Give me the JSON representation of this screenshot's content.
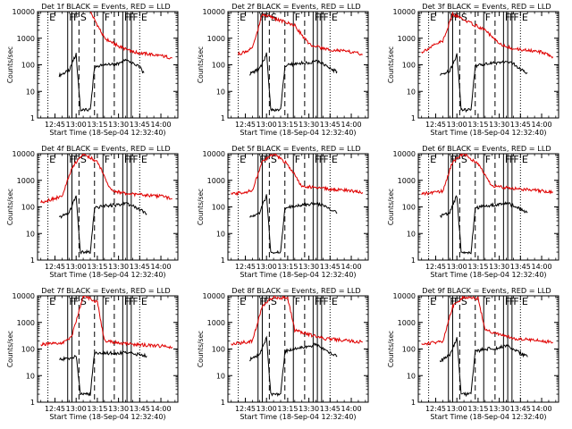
{
  "colors": {
    "events": "#000000",
    "lld": "#e00000",
    "axes": "#000000",
    "background": "#ffffff"
  },
  "shared": {
    "y_scale": "log",
    "ylim": [
      1,
      10000
    ],
    "y_ticks": [
      1,
      10,
      100,
      1000,
      10000
    ],
    "y_tick_labels": [
      "1",
      "10",
      "100",
      "1000",
      "10000"
    ],
    "ylabel": "Counts/sec",
    "x_ticks": [
      "12:45",
      "13:00",
      "13:15",
      "13:30",
      "13:45",
      "14:00"
    ],
    "xlabel": "Start Time (18-Sep-04 12:32:40)",
    "xlim": [
      "12:32:40",
      "14:12:00"
    ],
    "legend": "BLACK = Events, RED = LLD",
    "markers": [
      {
        "label": "E",
        "time": "12:40",
        "style": "dotted"
      },
      {
        "label": "F",
        "time": "12:54",
        "style": "solid"
      },
      {
        "label": "F",
        "time": "12:57",
        "style": "solid"
      },
      {
        "label": "S",
        "time": "13:02",
        "style": "dashed"
      },
      {
        "label": "",
        "time": "13:13",
        "style": "dashed"
      },
      {
        "label": "F",
        "time": "13:19",
        "style": "solid"
      },
      {
        "label": "",
        "time": "13:27",
        "style": "dashed"
      },
      {
        "label": "F",
        "time": "13:33",
        "style": "solid"
      },
      {
        "label": "F",
        "time": "13:36",
        "style": "solid"
      },
      {
        "label": "F",
        "time": "13:39",
        "style": "solid"
      },
      {
        "label": "E",
        "time": "13:45",
        "style": "dotted"
      }
    ]
  },
  "chart_data": [
    {
      "type": "line",
      "title": "Det 1f BLACK = Events, RED = LLD",
      "detector": "1f",
      "series": [
        {
          "name": "Events",
          "color": "#000000",
          "points": [
            [
              "12:48",
              40
            ],
            [
              "12:55",
              60
            ],
            [
              "12:58",
              150
            ],
            [
              "13:00",
              250
            ],
            [
              "13:03",
              2
            ],
            [
              "13:10",
              2
            ],
            [
              "13:13",
              80
            ],
            [
              "13:20",
              100
            ],
            [
              "13:30",
              110
            ],
            [
              "13:35",
              150
            ],
            [
              "13:40",
              120
            ],
            [
              "13:45",
              80
            ],
            [
              "13:48",
              50
            ]
          ]
        },
        {
          "name": "LLD",
          "color": "#e00000",
          "points": [
            [
              "13:10",
              10000
            ],
            [
              "13:20",
              1000
            ],
            [
              "13:30",
              500
            ],
            [
              "13:40",
              300
            ],
            [
              "14:00",
              220
            ],
            [
              "14:08",
              180
            ]
          ]
        }
      ]
    },
    {
      "type": "line",
      "title": "Det 2f BLACK = Events, RED = LLD",
      "detector": "2f",
      "series": [
        {
          "name": "Events",
          "color": "#000000",
          "points": [
            [
              "12:48",
              45
            ],
            [
              "12:55",
              70
            ],
            [
              "12:58",
              140
            ],
            [
              "13:00",
              280
            ],
            [
              "13:03",
              2
            ],
            [
              "13:10",
              2
            ],
            [
              "13:13",
              90
            ],
            [
              "13:20",
              110
            ],
            [
              "13:30",
              120
            ],
            [
              "13:35",
              140
            ],
            [
              "13:40",
              110
            ],
            [
              "13:45",
              70
            ],
            [
              "13:50",
              55
            ]
          ]
        },
        {
          "name": "LLD",
          "color": "#e00000",
          "points": [
            [
              "12:40",
              250
            ],
            [
              "12:50",
              400
            ],
            [
              "12:57",
              8000
            ],
            [
              "13:20",
              3000
            ],
            [
              "13:30",
              600
            ],
            [
              "13:40",
              400
            ],
            [
              "14:00",
              300
            ],
            [
              "14:08",
              250
            ]
          ]
        }
      ]
    },
    {
      "type": "line",
      "title": "Det 3f BLACK = Events, RED = LLD",
      "detector": "3f",
      "series": [
        {
          "name": "Events",
          "color": "#000000",
          "points": [
            [
              "12:48",
              40
            ],
            [
              "12:55",
              60
            ],
            [
              "12:58",
              130
            ],
            [
              "13:00",
              260
            ],
            [
              "13:03",
              2
            ],
            [
              "13:10",
              2
            ],
            [
              "13:13",
              90
            ],
            [
              "13:20",
              110
            ],
            [
              "13:30",
              120
            ],
            [
              "13:35",
              140
            ],
            [
              "13:40",
              110
            ],
            [
              "13:45",
              70
            ],
            [
              "13:50",
              50
            ]
          ]
        },
        {
          "name": "LLD",
          "color": "#e00000",
          "points": [
            [
              "12:35",
              300
            ],
            [
              "12:50",
              800
            ],
            [
              "12:57",
              8000
            ],
            [
              "13:20",
              2000
            ],
            [
              "13:30",
              600
            ],
            [
              "13:40",
              400
            ],
            [
              "14:00",
              300
            ],
            [
              "14:08",
              200
            ]
          ]
        }
      ]
    },
    {
      "type": "line",
      "title": "Det 4f BLACK = Events, RED = LLD",
      "detector": "4f",
      "series": [
        {
          "name": "Events",
          "color": "#000000",
          "points": [
            [
              "12:48",
              40
            ],
            [
              "12:55",
              60
            ],
            [
              "12:58",
              140
            ],
            [
              "13:00",
              250
            ],
            [
              "13:03",
              2
            ],
            [
              "13:10",
              2
            ],
            [
              "13:13",
              90
            ],
            [
              "13:20",
              110
            ],
            [
              "13:30",
              120
            ],
            [
              "13:35",
              140
            ],
            [
              "13:40",
              110
            ],
            [
              "13:45",
              80
            ],
            [
              "13:50",
              55
            ]
          ]
        },
        {
          "name": "LLD",
          "color": "#e00000",
          "points": [
            [
              "12:35",
              150
            ],
            [
              "12:50",
              250
            ],
            [
              "12:57",
              3000
            ],
            [
              "13:05",
              10000
            ],
            [
              "13:15",
              5000
            ],
            [
              "13:25",
              400
            ],
            [
              "13:40",
              300
            ],
            [
              "14:00",
              250
            ],
            [
              "14:08",
              200
            ]
          ]
        }
      ]
    },
    {
      "type": "line",
      "title": "Det 5f BLACK = Events, RED = LLD",
      "detector": "5f",
      "series": [
        {
          "name": "Events",
          "color": "#000000",
          "points": [
            [
              "12:48",
              40
            ],
            [
              "12:55",
              60
            ],
            [
              "12:58",
              150
            ],
            [
              "13:00",
              260
            ],
            [
              "13:03",
              2
            ],
            [
              "13:10",
              2
            ],
            [
              "13:13",
              90
            ],
            [
              "13:20",
              110
            ],
            [
              "13:30",
              120
            ],
            [
              "13:35",
              140
            ],
            [
              "13:40",
              110
            ],
            [
              "13:45",
              80
            ],
            [
              "13:50",
              60
            ]
          ]
        },
        {
          "name": "LLD",
          "color": "#e00000",
          "points": [
            [
              "12:35",
              300
            ],
            [
              "12:50",
              400
            ],
            [
              "12:57",
              5000
            ],
            [
              "13:05",
              10000
            ],
            [
              "13:15",
              4000
            ],
            [
              "13:25",
              600
            ],
            [
              "13:40",
              500
            ],
            [
              "14:00",
              400
            ],
            [
              "14:08",
              350
            ]
          ]
        }
      ]
    },
    {
      "type": "line",
      "title": "Det 6f BLACK = Events, RED = LLD",
      "detector": "6f",
      "series": [
        {
          "name": "Events",
          "color": "#000000",
          "points": [
            [
              "12:48",
              45
            ],
            [
              "12:55",
              60
            ],
            [
              "12:58",
              150
            ],
            [
              "13:00",
              260
            ],
            [
              "13:03",
              2
            ],
            [
              "13:10",
              2
            ],
            [
              "13:13",
              90
            ],
            [
              "13:20",
              110
            ],
            [
              "13:30",
              120
            ],
            [
              "13:35",
              140
            ],
            [
              "13:40",
              110
            ],
            [
              "13:45",
              80
            ],
            [
              "13:50",
              60
            ]
          ]
        },
        {
          "name": "LLD",
          "color": "#e00000",
          "points": [
            [
              "12:35",
              300
            ],
            [
              "12:50",
              400
            ],
            [
              "12:57",
              5000
            ],
            [
              "13:05",
              10000
            ],
            [
              "13:15",
              4000
            ],
            [
              "13:25",
              600
            ],
            [
              "13:40",
              500
            ],
            [
              "14:00",
              400
            ],
            [
              "14:08",
              350
            ]
          ]
        }
      ]
    },
    {
      "type": "line",
      "title": "Det 7f BLACK = Events, RED = LLD",
      "detector": "7f",
      "series": [
        {
          "name": "Events",
          "color": "#000000",
          "points": [
            [
              "12:48",
              40
            ],
            [
              "12:55",
              45
            ],
            [
              "12:58",
              50
            ],
            [
              "13:00",
              60
            ],
            [
              "13:03",
              2
            ],
            [
              "13:10",
              2
            ],
            [
              "13:13",
              70
            ],
            [
              "13:20",
              70
            ],
            [
              "13:30",
              70
            ],
            [
              "13:35",
              75
            ],
            [
              "13:40",
              70
            ],
            [
              "13:45",
              60
            ],
            [
              "13:50",
              55
            ]
          ]
        },
        {
          "name": "LLD",
          "color": "#e00000",
          "points": [
            [
              "12:35",
              150
            ],
            [
              "12:50",
              160
            ],
            [
              "12:57",
              300
            ],
            [
              "13:05",
              10000
            ],
            [
              "13:15",
              6000
            ],
            [
              "13:20",
              200
            ],
            [
              "13:40",
              150
            ],
            [
              "14:00",
              130
            ],
            [
              "14:08",
              120
            ]
          ]
        }
      ]
    },
    {
      "type": "line",
      "title": "Det 8f BLACK = Events, RED = LLD",
      "detector": "8f",
      "series": [
        {
          "name": "Events",
          "color": "#000000",
          "points": [
            [
              "12:48",
              40
            ],
            [
              "12:55",
              60
            ],
            [
              "12:58",
              150
            ],
            [
              "13:00",
              260
            ],
            [
              "13:03",
              2
            ],
            [
              "13:10",
              2
            ],
            [
              "13:13",
              80
            ],
            [
              "13:20",
              100
            ],
            [
              "13:30",
              120
            ],
            [
              "13:35",
              150
            ],
            [
              "13:40",
              100
            ],
            [
              "13:45",
              70
            ],
            [
              "13:50",
              55
            ]
          ]
        },
        {
          "name": "LLD",
          "color": "#e00000",
          "points": [
            [
              "12:35",
              150
            ],
            [
              "12:50",
              200
            ],
            [
              "12:57",
              4000
            ],
            [
              "13:05",
              9000
            ],
            [
              "13:15",
              8000
            ],
            [
              "13:20",
              500
            ],
            [
              "13:40",
              250
            ],
            [
              "14:00",
              200
            ],
            [
              "14:08",
              180
            ]
          ]
        }
      ]
    },
    {
      "type": "line",
      "title": "Det 9f BLACK = Events, RED = LLD",
      "detector": "9f",
      "series": [
        {
          "name": "Events",
          "color": "#000000",
          "points": [
            [
              "12:48",
              35
            ],
            [
              "12:55",
              60
            ],
            [
              "12:58",
              140
            ],
            [
              "13:00",
              250
            ],
            [
              "13:03",
              2
            ],
            [
              "13:10",
              2
            ],
            [
              "13:13",
              80
            ],
            [
              "13:20",
              100
            ],
            [
              "13:30",
              110
            ],
            [
              "13:35",
              140
            ],
            [
              "13:40",
              100
            ],
            [
              "13:45",
              70
            ],
            [
              "13:50",
              50
            ]
          ]
        },
        {
          "name": "LLD",
          "color": "#e00000",
          "points": [
            [
              "12:35",
              150
            ],
            [
              "12:50",
              200
            ],
            [
              "12:57",
              4000
            ],
            [
              "13:05",
              9000
            ],
            [
              "13:15",
              8000
            ],
            [
              "13:20",
              500
            ],
            [
              "13:40",
              250
            ],
            [
              "14:00",
              200
            ],
            [
              "14:08",
              180
            ]
          ]
        }
      ]
    }
  ]
}
